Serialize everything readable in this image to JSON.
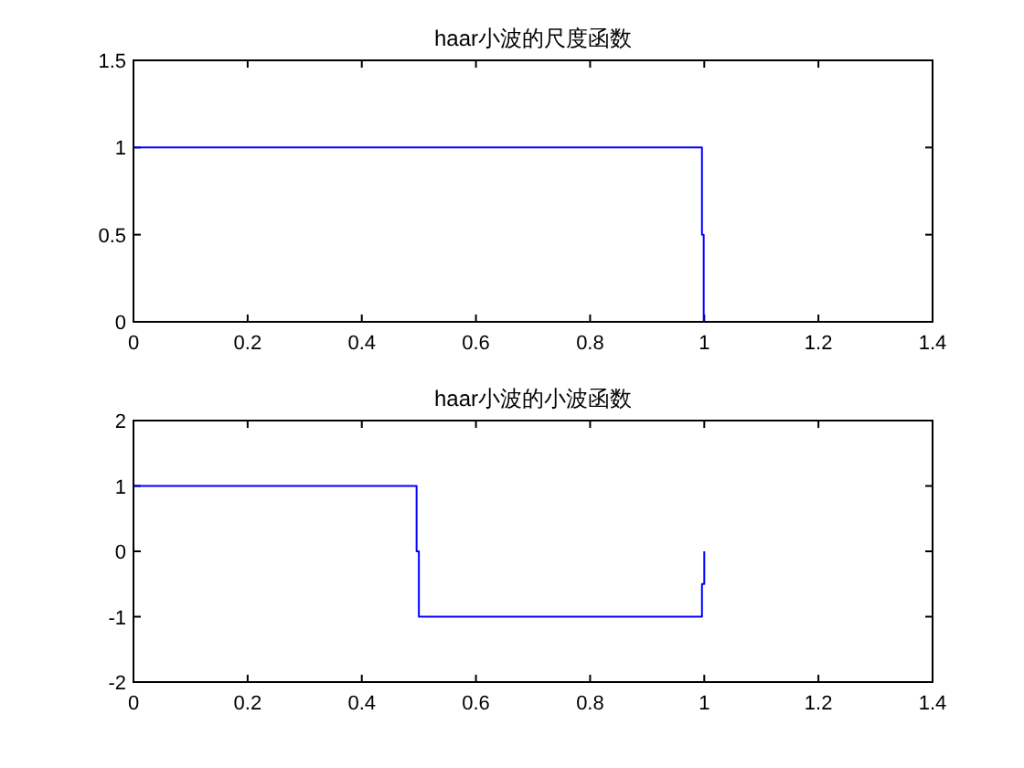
{
  "chart_data": [
    {
      "type": "line",
      "title": "haar小波的尺度函数",
      "series": [
        {
          "color": "#0000ff",
          "x": [
            0,
            0.996,
            0.996,
            0.999,
            0.999
          ],
          "values": [
            1,
            1,
            0.5,
            0.5,
            0
          ]
        }
      ],
      "xlim": [
        0,
        1.4
      ],
      "xticks": [
        0,
        0.2,
        0.4,
        0.6,
        0.8,
        1,
        1.2,
        1.4
      ],
      "ylim": [
        0,
        1.5
      ],
      "yticks": [
        0,
        0.5,
        1,
        1.5
      ],
      "grid": false
    },
    {
      "type": "line",
      "title": "haar小波的小波函数",
      "series": [
        {
          "color": "#0000ff",
          "x": [
            0,
            0.496,
            0.496,
            0.5,
            0.5,
            0.996,
            0.996,
            1.0,
            1.0
          ],
          "values": [
            1,
            1,
            0,
            0,
            -1,
            -1,
            -0.5,
            -0.5,
            0
          ]
        }
      ],
      "xlim": [
        0,
        1.4
      ],
      "xticks": [
        0,
        0.2,
        0.4,
        0.6,
        0.8,
        1,
        1.2,
        1.4
      ],
      "ylim": [
        -2,
        2
      ],
      "yticks": [
        -2,
        -1,
        0,
        1,
        2
      ],
      "grid": false
    }
  ]
}
